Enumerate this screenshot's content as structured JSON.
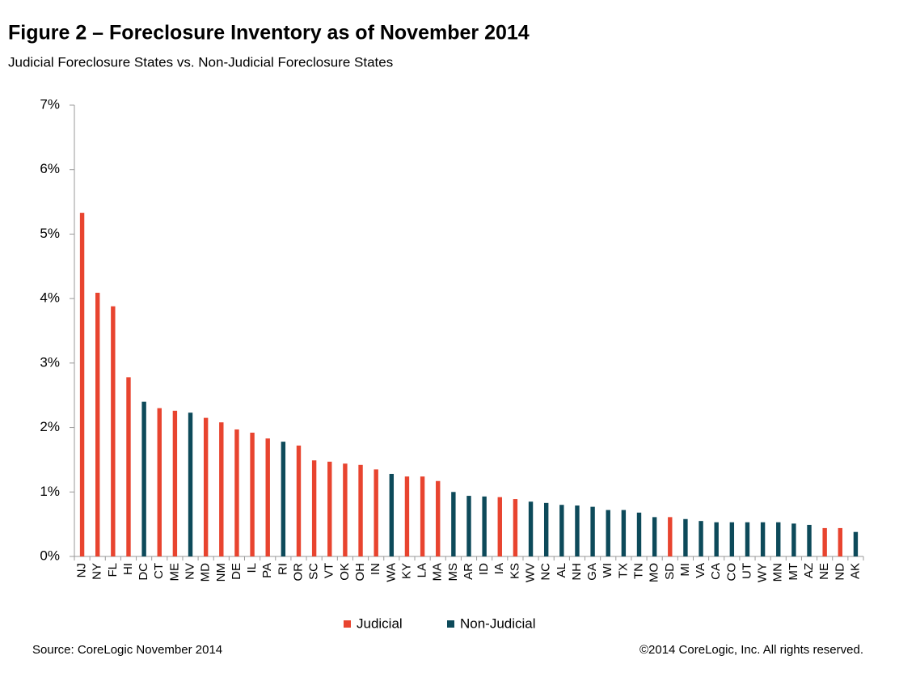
{
  "chart_data": {
    "type": "bar",
    "title": "Figure 2 – Foreclosure Inventory as of November 2014",
    "subtitle": "Judicial Foreclosure States vs. Non-Judicial Foreclosure States",
    "source": "Source: CoreLogic November 2014",
    "copyright": "©2014 CoreLogic, Inc. All rights reserved.",
    "categories": [
      "NJ",
      "NY",
      "FL",
      "HI",
      "DC",
      "CT",
      "ME",
      "NV",
      "MD",
      "NM",
      "DE",
      "IL",
      "PA",
      "RI",
      "OR",
      "SC",
      "VT",
      "OK",
      "OH",
      "IN",
      "WA",
      "KY",
      "LA",
      "MA",
      "MS",
      "AR",
      "ID",
      "IA",
      "KS",
      "WV",
      "NC",
      "AL",
      "NH",
      "GA",
      "WI",
      "TX",
      "TN",
      "MO",
      "SD",
      "MI",
      "VA",
      "CA",
      "CO",
      "UT",
      "WY",
      "MN",
      "MT",
      "AZ",
      "NE",
      "ND",
      "AK"
    ],
    "series": [
      {
        "name": "Judicial",
        "color": "#e8442f",
        "values": [
          5.33,
          4.09,
          3.88,
          2.78,
          null,
          2.3,
          2.26,
          null,
          2.15,
          2.08,
          1.97,
          1.92,
          1.83,
          null,
          1.72,
          1.49,
          1.47,
          1.44,
          1.42,
          1.35,
          null,
          1.24,
          1.24,
          1.17,
          null,
          null,
          null,
          0.92,
          0.89,
          null,
          null,
          null,
          null,
          null,
          null,
          null,
          null,
          null,
          0.61,
          null,
          null,
          null,
          null,
          null,
          null,
          null,
          null,
          null,
          0.44,
          0.44,
          null
        ]
      },
      {
        "name": "Non-Judicial",
        "color": "#0d4a5a",
        "values": [
          null,
          null,
          null,
          null,
          2.4,
          null,
          null,
          2.23,
          null,
          null,
          null,
          null,
          null,
          1.78,
          null,
          null,
          null,
          null,
          null,
          null,
          1.28,
          null,
          null,
          null,
          1.0,
          0.94,
          0.93,
          null,
          null,
          0.85,
          0.83,
          0.8,
          0.79,
          0.77,
          0.72,
          0.72,
          0.68,
          0.61,
          null,
          0.58,
          0.55,
          0.53,
          0.53,
          0.53,
          0.53,
          0.53,
          0.51,
          0.49,
          null,
          null,
          0.38
        ]
      }
    ],
    "ylim": [
      0,
      7
    ],
    "yticks": [
      {
        "value": 0,
        "label": "0%"
      },
      {
        "value": 1,
        "label": "1%"
      },
      {
        "value": 2,
        "label": "2%"
      },
      {
        "value": 3,
        "label": "3%"
      },
      {
        "value": 4,
        "label": "4%"
      },
      {
        "value": 5,
        "label": "5%"
      },
      {
        "value": 6,
        "label": "6%"
      },
      {
        "value": 7,
        "label": "7%"
      }
    ],
    "legend": "bottom"
  }
}
